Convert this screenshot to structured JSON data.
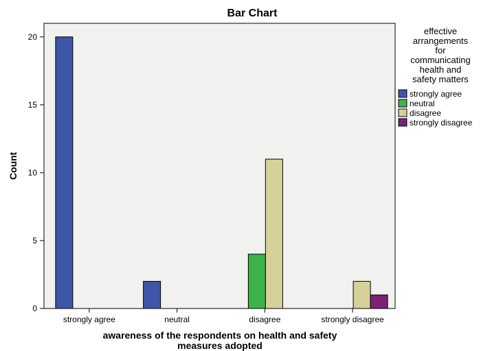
{
  "chart_data": {
    "type": "bar",
    "title": "Bar Chart",
    "xlabel": "awareness of the respondents on health and safety measures adopted",
    "xlabel_lines": [
      "awareness of the respondents on health and safety",
      "measures adopted"
    ],
    "ylabel": "Count",
    "ylim": [
      0,
      21
    ],
    "yticks": [
      0,
      5,
      10,
      15,
      20
    ],
    "categories": [
      "strongly agree",
      "neutral",
      "disagree",
      "strongly disagree"
    ],
    "legend": {
      "title_lines": [
        "effective",
        "arrangements",
        "for",
        "communicating",
        "health and",
        "safety matters"
      ],
      "placement": "right"
    },
    "series": [
      {
        "name": "strongly agree",
        "color": "#3f55a8",
        "values": [
          20,
          2,
          0,
          0
        ]
      },
      {
        "name": "neutral",
        "color": "#3cb44a",
        "values": [
          0,
          0,
          4,
          0
        ]
      },
      {
        "name": "disagree",
        "color": "#d6d19b",
        "values": [
          0,
          0,
          11,
          2
        ]
      },
      {
        "name": "strongly disagree",
        "color": "#7a2376",
        "values": [
          0,
          0,
          0,
          1
        ]
      }
    ],
    "grid": false,
    "plot_background": "#f1f1ef"
  }
}
